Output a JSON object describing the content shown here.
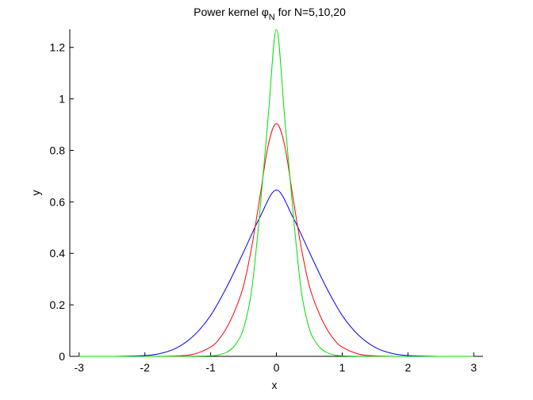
{
  "chart_data": {
    "type": "line",
    "title_prefix": "Power kernel ",
    "title_symbol": "φ",
    "title_subscript": "N",
    "title_suffix": " for N=5,10,20",
    "xlabel": "x",
    "ylabel": "y",
    "xlim": [
      -3.1416,
      3.1416
    ],
    "ylim": [
      0,
      1.27
    ],
    "xticks": [
      -3,
      -2,
      -1,
      0,
      1,
      2,
      3
    ],
    "xtick_labels": [
      "-3",
      "-2",
      "-1",
      "0",
      "1",
      "2",
      "3"
    ],
    "yticks": [
      0,
      0.2,
      0.4,
      0.6,
      0.8,
      1,
      1.2
    ],
    "ytick_labels": [
      "0",
      "0.2",
      "0.4",
      "0.6",
      "0.8",
      "1",
      "1.2"
    ],
    "grid": false,
    "series": [
      {
        "color": "#0000ff",
        "x": [
          -3.0,
          -2.5,
          -2.0,
          -1.75,
          -1.5,
          -1.25,
          -1.0,
          -0.75,
          -0.5,
          -0.25,
          0.0,
          0.25,
          0.5,
          0.75,
          1.0,
          1.25,
          1.5,
          1.75,
          2.0,
          2.5,
          3.0
        ],
        "y": [
          0.0,
          0.0,
          0.003,
          0.012,
          0.035,
          0.082,
          0.159,
          0.272,
          0.405,
          0.541,
          0.646,
          0.541,
          0.405,
          0.272,
          0.159,
          0.082,
          0.035,
          0.012,
          0.003,
          0.0,
          0.0
        ]
      },
      {
        "color": "#ff0000",
        "x": [
          -3.0,
          -2.0,
          -1.5,
          -1.25,
          -1.0,
          -0.875,
          -0.75,
          -0.625,
          -0.5,
          -0.375,
          -0.25,
          -0.125,
          0.0,
          0.125,
          0.25,
          0.375,
          0.5,
          0.625,
          0.75,
          0.875,
          1.0,
          1.25,
          1.5,
          2.0,
          3.0
        ],
        "y": [
          0.0,
          0.0,
          0.002,
          0.009,
          0.036,
          0.066,
          0.114,
          0.182,
          0.274,
          0.426,
          0.62,
          0.82,
          0.904,
          0.82,
          0.62,
          0.426,
          0.274,
          0.182,
          0.114,
          0.066,
          0.036,
          0.009,
          0.002,
          0.0,
          0.0
        ]
      },
      {
        "color": "#00dd00",
        "x": [
          -3.0,
          -1.5,
          -1.0,
          -0.875,
          -0.75,
          -0.625,
          -0.5,
          -0.375,
          -0.25,
          -0.125,
          0.0,
          0.125,
          0.25,
          0.375,
          0.5,
          0.625,
          0.75,
          0.875,
          1.0,
          1.5,
          3.0
        ],
        "y": [
          0.0,
          0.0,
          0.002,
          0.006,
          0.017,
          0.045,
          0.108,
          0.26,
          0.568,
          0.93,
          1.27,
          0.93,
          0.568,
          0.26,
          0.108,
          0.045,
          0.017,
          0.006,
          0.002,
          0.0,
          0.0
        ]
      }
    ]
  }
}
